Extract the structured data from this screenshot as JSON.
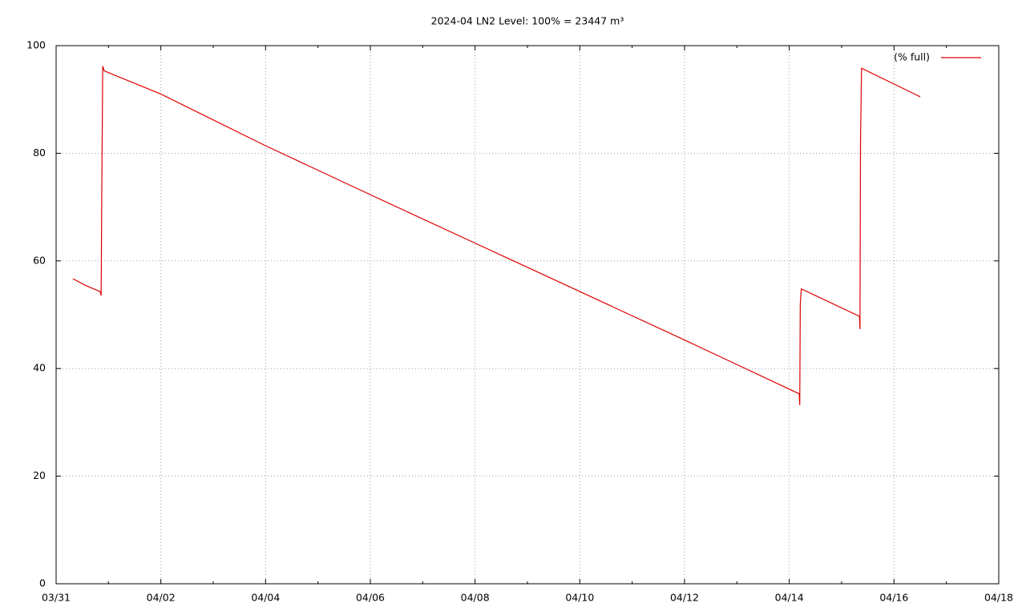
{
  "chart_data": {
    "type": "line",
    "title": "2024-04 LN2 Level: 100% = 23447 m³",
    "x": [
      0.32,
      0.55,
      0.84,
      0.86,
      0.87,
      0.89,
      0.92,
      2,
      4,
      6,
      8,
      10,
      12,
      14.19,
      14.2,
      14.21,
      14.23,
      15.34,
      15.35,
      15.36,
      15.38,
      16.5
    ],
    "series": [
      {
        "name": "(% full)",
        "color": "#dd0000",
        "values": [
          56.7,
          55.5,
          54.3,
          53.6,
          70,
          96.2,
          95.3,
          91,
          81.4,
          72.3,
          63.3,
          54.3,
          45.3,
          35.3,
          33.2,
          52,
          54.8,
          49.7,
          47.3,
          82,
          95.8,
          90.5
        ]
      }
    ],
    "xlim": [
      0,
      18
    ],
    "xticks": [
      {
        "value": 0,
        "label": "03/31"
      },
      {
        "value": 2,
        "label": "04/02"
      },
      {
        "value": 4,
        "label": "04/04"
      },
      {
        "value": 6,
        "label": "04/06"
      },
      {
        "value": 8,
        "label": "04/08"
      },
      {
        "value": 10,
        "label": "04/10"
      },
      {
        "value": 12,
        "label": "04/12"
      },
      {
        "value": 14,
        "label": "04/14"
      },
      {
        "value": 16,
        "label": "04/16"
      },
      {
        "value": 18,
        "label": "04/18"
      }
    ],
    "ylim": [
      0,
      100
    ],
    "yticks": [
      0,
      20,
      40,
      60,
      80,
      100
    ],
    "grid": true,
    "legend": "top right"
  }
}
